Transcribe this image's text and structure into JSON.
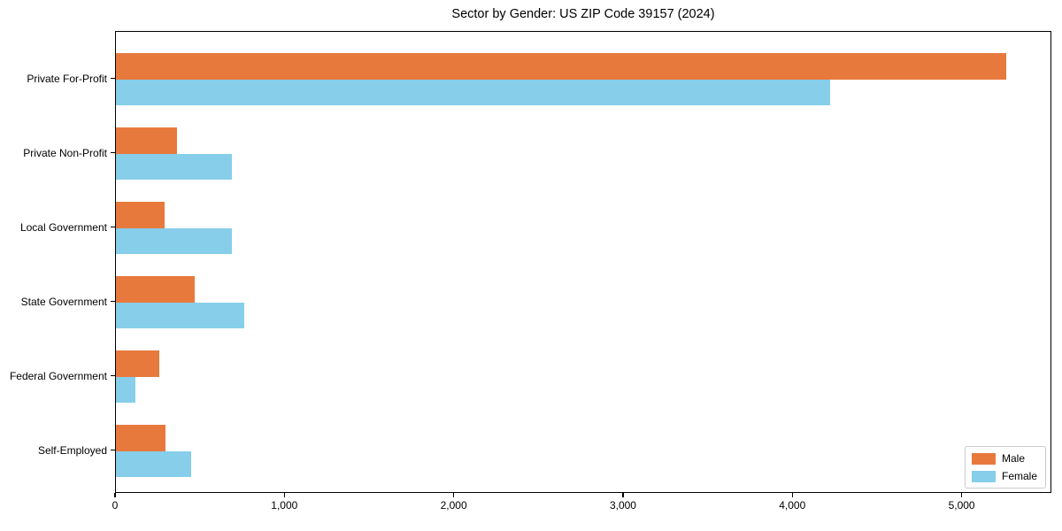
{
  "title": "Sector by Gender: US ZIP Code 39157 (2024)",
  "chart_data": {
    "type": "bar",
    "orientation": "horizontal",
    "title": "Sector by Gender: US ZIP Code 39157 (2024)",
    "categories": [
      "Private For-Profit",
      "Private Non-Profit",
      "Local Government",
      "State Government",
      "Federal Government",
      "Self-Employed"
    ],
    "series": [
      {
        "name": "Male",
        "color": "#E8793D",
        "values": [
          5260,
          360,
          285,
          465,
          255,
          295
        ]
      },
      {
        "name": "Female",
        "color": "#87CEEB",
        "values": [
          4220,
          685,
          685,
          760,
          115,
          445
        ]
      }
    ],
    "xlabel": "",
    "ylabel": "",
    "xlim": [
      0,
      5530
    ],
    "xticks": [
      0,
      1000,
      2000,
      3000,
      4000,
      5000
    ],
    "xtick_labels": [
      "0",
      "1,000",
      "2,000",
      "3,000",
      "4,000",
      "5,000"
    ],
    "grid": false,
    "legend": {
      "position": "lower right",
      "entries": [
        "Male",
        "Female"
      ]
    }
  }
}
